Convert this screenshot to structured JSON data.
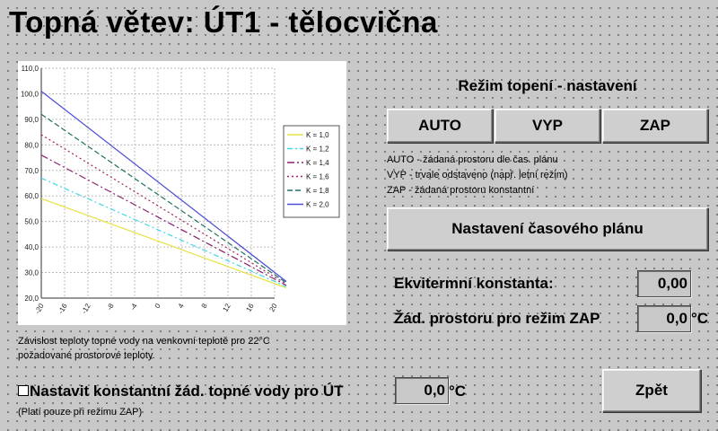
{
  "header": {
    "title": "Topná větev: ÚT1 - tělocvična"
  },
  "chart_data": {
    "type": "line",
    "x": [
      -20,
      -16,
      -12,
      -8,
      -4,
      0,
      4,
      8,
      12,
      16,
      20
    ],
    "xticks": [
      "-20",
      "-16",
      "-12",
      "-8",
      "-4",
      "0",
      "4",
      "8",
      "12",
      "16",
      "20"
    ],
    "yticks": [
      "20,0",
      "30,0",
      "40,0",
      "50,0",
      "60,0",
      "70,0",
      "80,0",
      "90,0",
      "100,0",
      "110,0"
    ],
    "xlim": [
      -20,
      20
    ],
    "ylim": [
      20,
      110
    ],
    "grid": true,
    "legend_position": "right",
    "series": [
      {
        "name": "K = 1,0",
        "color": "#e8e040",
        "dash": "",
        "x_start": -20,
        "y_start": 59,
        "x_end": 22,
        "y_end": 24
      },
      {
        "name": "K = 1,2",
        "color": "#40d8e8",
        "dash": "6,3,2,3",
        "x_start": -20,
        "y_start": 67,
        "x_end": 22,
        "y_end": 24.5
      },
      {
        "name": "K = 1,4",
        "color": "#8a2070",
        "dash": "8,3,2,3",
        "x_start": -20,
        "y_start": 76,
        "x_end": 22,
        "y_end": 25
      },
      {
        "name": "K = 1,6",
        "color": "#a02060",
        "dash": "2,3",
        "x_start": -20,
        "y_start": 84,
        "x_end": 22,
        "y_end": 25.5
      },
      {
        "name": "K = 1,8",
        "color": "#207060",
        "dash": "6,3",
        "x_start": -20,
        "y_start": 92,
        "x_end": 22,
        "y_end": 26
      },
      {
        "name": "K = 2,0",
        "color": "#4a4ad8",
        "dash": "",
        "x_start": -20,
        "y_start": 101,
        "x_end": 22,
        "y_end": 26.5
      }
    ]
  },
  "chart_caption": {
    "line1": "Závislost teploty topné vody na venkovní teplotě pro 22°C",
    "line2": "požadované prostorové teploty."
  },
  "mode": {
    "title": "Režim topení - nastavení",
    "buttons": {
      "auto": "AUTO",
      "vyp": "VYP",
      "zap": "ZAP"
    },
    "desc_auto": "AUTO - žádaná prostoru dle čas. plánu",
    "desc_vyp": "VYP  - trvale odstaveno (např. letní režim)",
    "desc_zap": "ZAP  - žádaná prostoru konstantní",
    "schedule_button": "Nastavení časového plánu"
  },
  "settings": {
    "ekviterm_label": "Ekvitermní konstanta:",
    "ekviterm_value": "0,00",
    "zap_label": "Žád. prostoru pro režim ZAP",
    "zap_value": "0,0",
    "zap_unit": "°C"
  },
  "constant": {
    "checkbox_label": "Nastavit konstantní žád. topné vody pro ÚT",
    "value": "0,0",
    "unit": "°C",
    "note": "(Platí pouze při režimu ZAP)"
  },
  "footer": {
    "back_button": "Zpět"
  }
}
